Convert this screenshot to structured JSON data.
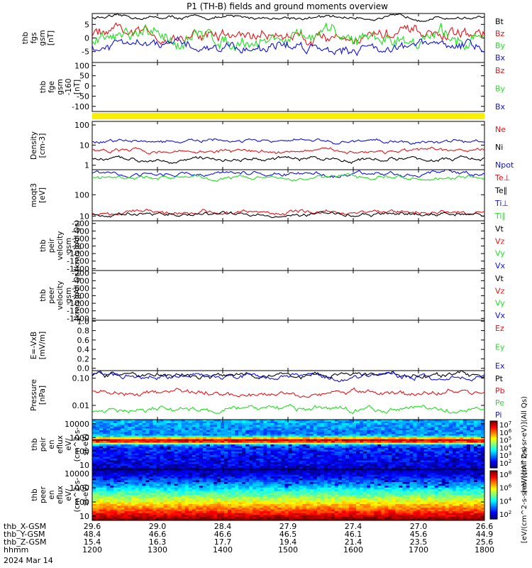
{
  "title": "P1 (TH-B) fields and ground moments overview",
  "date_label": "2024 Mar 14",
  "colors": {
    "black": "#000000",
    "red": "#e8141a",
    "green": "#1fe01f",
    "blue": "#1010e0",
    "yellow": "#f8f000"
  },
  "chart_data": [
    {
      "type": "line",
      "id": "fgs",
      "ylabel": [
        "thb",
        "fgs",
        "gsm",
        "[nT]"
      ],
      "yticks": [
        "5",
        "0",
        "-5"
      ],
      "ylim": [
        -9,
        9
      ],
      "scale": "linear",
      "series": [
        {
          "name": "Bt",
          "color": "black",
          "level": 7.5,
          "noise": 0.8
        },
        {
          "name": "Bz",
          "color": "red",
          "level": 1.0,
          "noise": 3.0
        },
        {
          "name": "By",
          "color": "green",
          "level": 0.0,
          "noise": 3.5
        },
        {
          "name": "Bx",
          "color": "blue",
          "level": -3.0,
          "noise": 2.5
        }
      ]
    },
    {
      "type": "line",
      "id": "fge",
      "ylabel": [
        "thb",
        "fge",
        "gsm",
        "-160",
        "[nT]"
      ],
      "yticks": [
        "100",
        "50",
        "0",
        "-50",
        "-100"
      ],
      "ylim": [
        -125,
        115
      ],
      "scale": "linear",
      "series": [
        {
          "name": "Bz",
          "color": "red"
        },
        {
          "name": "By",
          "color": "green"
        },
        {
          "name": "Bx",
          "color": "blue"
        }
      ]
    },
    {
      "type": "line",
      "id": "density",
      "ylabel": [
        "Density",
        "[cm-3]"
      ],
      "yticks": [
        "100",
        "10",
        "1"
      ],
      "ylim": [
        0.6,
        150
      ],
      "scale": "log",
      "series": [
        {
          "name": "Ne",
          "color": "red",
          "level": 5.0
        },
        {
          "name": "Ni",
          "color": "black",
          "level": 2.0
        },
        {
          "name": "Npot",
          "color": "blue",
          "level": 15.0
        }
      ]
    },
    {
      "type": "line",
      "id": "temp",
      "ylabel": [
        "moqt3",
        "[eV]"
      ],
      "yticks": [
        "100",
        "10"
      ],
      "ylim": [
        6,
        1500
      ],
      "scale": "log",
      "series": [
        {
          "name": "Te⊥",
          "color": "red",
          "level": 15
        },
        {
          "name": "Te∥",
          "color": "black",
          "level": 12
        },
        {
          "name": "Ti⊥",
          "color": "blue",
          "level": 950
        },
        {
          "name": "Ti∥",
          "color": "green",
          "level": 650
        }
      ]
    },
    {
      "type": "line",
      "id": "peir_v",
      "ylabel": [
        "thb",
        "peir",
        "velocity",
        "gsm",
        "[km/s](All Qs)"
      ],
      "yticks": [
        "-200",
        "-400",
        "-600",
        "-800",
        "-1000",
        "-1200",
        "-1400"
      ],
      "ylim": [
        -1450,
        -130
      ],
      "scale": "linear",
      "series": [
        {
          "name": "Vt",
          "color": "black"
        },
        {
          "name": "Vz",
          "color": "red"
        },
        {
          "name": "Vy",
          "color": "green"
        },
        {
          "name": "Vx",
          "color": "blue"
        }
      ]
    },
    {
      "type": "line",
      "id": "peer_v",
      "ylabel": [
        "thb",
        "peer",
        "velocity",
        "gsm",
        "[km/s](All Qs)"
      ],
      "yticks": [
        "-200",
        "-400",
        "-600",
        "-800",
        "-1000",
        "-1200",
        "-1400"
      ],
      "ylim": [
        -1450,
        -130
      ],
      "scale": "linear",
      "series": [
        {
          "name": "Vt",
          "color": "black"
        },
        {
          "name": "Vz",
          "color": "red"
        },
        {
          "name": "Vy",
          "color": "green"
        },
        {
          "name": "Vx",
          "color": "blue"
        }
      ]
    },
    {
      "type": "line",
      "id": "efield",
      "ylabel": [
        "E=-VxB",
        "[mV/m]"
      ],
      "yticks": [
        "1.0",
        "0.8",
        "0.6",
        "0.4",
        "0.2",
        "0.0"
      ],
      "ylim": [
        -0.05,
        1.02
      ],
      "scale": "linear",
      "series": [
        {
          "name": "Ez",
          "color": "red"
        },
        {
          "name": "Ey",
          "color": "green"
        },
        {
          "name": "Ex",
          "color": "blue"
        }
      ]
    },
    {
      "type": "line",
      "id": "pressure",
      "ylabel": [
        "Pressure",
        "[nPa]"
      ],
      "yticks": [
        "0.10",
        "0.01"
      ],
      "ylim": [
        0.003,
        0.19
      ],
      "scale": "log",
      "series": [
        {
          "name": "Pt",
          "color": "black",
          "level": 0.13
        },
        {
          "name": "Pb",
          "color": "red",
          "level": 0.03
        },
        {
          "name": "Pe",
          "color": "green",
          "level": 0.007
        },
        {
          "name": "Pi",
          "color": "blue",
          "level": 0.12
        }
      ]
    },
    {
      "type": "heatmap",
      "id": "peir_spec",
      "ylabel": [
        "thb",
        "peir",
        "en",
        "eflux",
        "eV/",
        "(cm^2-s-",
        "sr-eV)"
      ],
      "yticks": [
        "10000",
        "1000",
        "100",
        "10"
      ],
      "ylim": [
        5,
        20000
      ],
      "scale": "log",
      "colorbar": {
        "title": "[eV/(cm^2-s-sr-eV)](All Qs)",
        "tick_labels": [
          "10^7",
          "10^6",
          "10^5",
          "10^4",
          "10^3",
          "10^2"
        ]
      }
    },
    {
      "type": "heatmap",
      "id": "peer_spec",
      "ylabel": [
        "thb",
        "peer",
        "en",
        "eflux",
        "eV/",
        "(cm^2-s-",
        "sr-eV)"
      ],
      "yticks": [
        "10000",
        "1000",
        "100",
        "10"
      ],
      "ylim": [
        5,
        20000
      ],
      "scale": "log",
      "colorbar": {
        "title": "[eV/(cm^2-s-sr-eV)](All Qs)",
        "tick_labels": [
          "10^8",
          "10^6",
          "10^4",
          "10^2"
        ]
      }
    }
  ],
  "x_axis": {
    "rows": [
      {
        "label": "thb_X-GSM",
        "values": [
          "29.6",
          "29.0",
          "28.4",
          "27.9",
          "27.4",
          "27.0",
          "26.6"
        ]
      },
      {
        "label": "thb_Y-GSM",
        "values": [
          "48.4",
          "46.6",
          "46.6",
          "46.5",
          "46.1",
          "45.6",
          "44.9"
        ]
      },
      {
        "label": "thb_Z-GSM",
        "values": [
          "15.4",
          "16.3",
          "17.7",
          "19.4",
          "21.4",
          "23.5",
          "25.6"
        ]
      },
      {
        "label": "hhmm",
        "values": [
          "1200",
          "1300",
          "1400",
          "1500",
          "1600",
          "1700",
          "1800"
        ]
      }
    ]
  }
}
